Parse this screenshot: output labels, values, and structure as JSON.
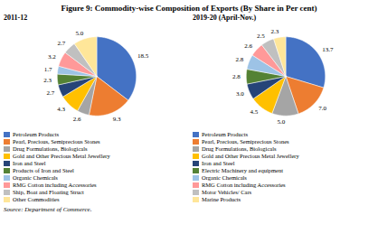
{
  "chart_data": [
    {
      "type": "pie",
      "title": "Figure 9: Commodity-wise Composition of Exports (By Share in Per cent)",
      "subtitle": "2011-12",
      "categories": [
        "Petroleum Products",
        "Pearl, Precious, Semiprecious Stones",
        "Drug Formulations, Biologicals",
        "Gold and Other Precious Metal Jewellery",
        "Iron and Steel",
        "Products of Iron and Steel",
        "Organic Chemicals",
        "RMG Cotton including Accessories",
        "Ship, Boat and Floating Struct",
        "Other Commodities"
      ],
      "values": [
        18.5,
        9.3,
        2.6,
        4.3,
        2.7,
        2.3,
        1.7,
        3.2,
        2.7,
        5.0
      ],
      "value_labels": [
        "18.5",
        "9.3",
        "2.6",
        "4.3",
        "2.7",
        "2.3",
        "1.7",
        "3.2",
        "2.7",
        "5.0"
      ],
      "colors": [
        "#4472C4",
        "#ED7D31",
        "#A5A5A5",
        "#FFC000",
        "#264478",
        "#548235",
        "#9DC3E6",
        "#FF9999",
        "#C0C0C0",
        "#FFE699"
      ],
      "data_labels": true,
      "legend": "bottom"
    },
    {
      "type": "pie",
      "subtitle": "2019-20 (April-Nov.)",
      "categories": [
        "Petroleum Products",
        "Pearl, Precious, Semiprecious Stones",
        "Drug Formulations, Biologicals",
        "Gold and Other Precious Metal Jewellery",
        "Iron and Steel",
        "Electric Machinery and equipment",
        "Organic Chemicals",
        "RMG Cotton including Accessories",
        "Motor Vehicles/ Cars",
        "Marine Products"
      ],
      "values": [
        13.7,
        7.0,
        5.0,
        4.5,
        3.0,
        2.8,
        2.8,
        2.6,
        2.5,
        2.3
      ],
      "value_labels": [
        "13.7",
        "7.0",
        "5.0",
        "4.5",
        "3.0",
        "2.8",
        "2.8",
        "2.6",
        "2.5",
        "2.3"
      ],
      "colors": [
        "#4472C4",
        "#ED7D31",
        "#A5A5A5",
        "#FFC000",
        "#264478",
        "#548235",
        "#9DC3E6",
        "#FF9999",
        "#C0C0C0",
        "#FFE699"
      ],
      "data_labels": true,
      "legend": "bottom",
      "annotations": [
        "Source: Department of Commerce."
      ]
    }
  ]
}
